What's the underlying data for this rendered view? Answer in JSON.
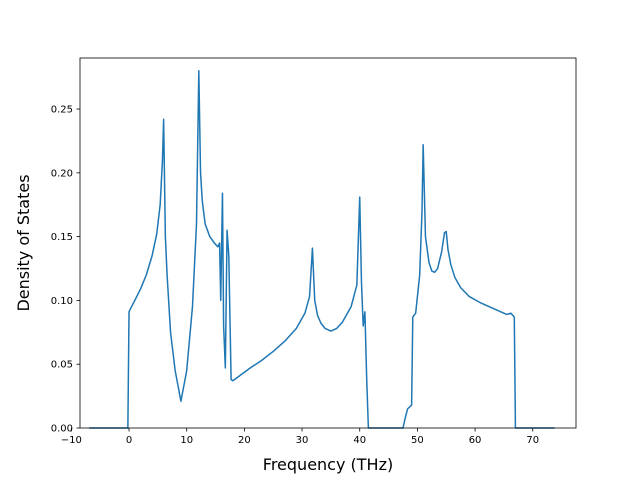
{
  "chart_data": {
    "type": "line",
    "xlabel": "Frequency (THz)",
    "ylabel": "Density of States",
    "xlim": [
      -8.5,
      77.5
    ],
    "ylim": [
      0.0,
      0.29
    ],
    "x_ticks": [
      -10,
      0,
      10,
      20,
      30,
      40,
      50,
      60,
      70
    ],
    "x_tick_labels": [
      "−10",
      "0",
      "10",
      "20",
      "30",
      "40",
      "50",
      "60",
      "70"
    ],
    "y_ticks": [
      0.0,
      0.05,
      0.1,
      0.15,
      0.2,
      0.25
    ],
    "y_tick_labels": [
      "0.00",
      "0.05",
      "0.10",
      "0.15",
      "0.20",
      "0.25"
    ],
    "grid": false,
    "legend": "none",
    "line_color": "#1f77b4",
    "series": [
      {
        "x": [
          -6.9,
          -0.2,
          0.0,
          0.2,
          1,
          2,
          3,
          4,
          4.8,
          5.4,
          5.8,
          6.0,
          6.3,
          6.6,
          7.2,
          8.0,
          9.0,
          10.0,
          11.0,
          11.7,
          12.1,
          12.4,
          12.7,
          13.2,
          14.0,
          14.8,
          15.4,
          15.7,
          15.9,
          16.2,
          16.4,
          16.7,
          17.0,
          17.3,
          17.7,
          18.0,
          18.6,
          19.5,
          21,
          23,
          25,
          27,
          29,
          30.5,
          31.3,
          31.8,
          32.2,
          32.7,
          33.3,
          34,
          35,
          36,
          37,
          38.5,
          39.5,
          40.0,
          40.3,
          40.6,
          40.9,
          41.2,
          41.5,
          41.8,
          42.1,
          47.5,
          47.9,
          48.3,
          49.0,
          49.2,
          49.7,
          50.4,
          50.8,
          51.0,
          51.4,
          52,
          52.5,
          53,
          53.5,
          54.2,
          54.7,
          55.0,
          55.3,
          55.8,
          56.5,
          57.5,
          59,
          61,
          63,
          64.5,
          65.5,
          66.2,
          66.8,
          67.0,
          73.8
        ],
        "y": [
          0.0,
          0.0,
          0.091,
          0.093,
          0.1,
          0.109,
          0.12,
          0.135,
          0.152,
          0.175,
          0.21,
          0.242,
          0.15,
          0.12,
          0.075,
          0.045,
          0.021,
          0.045,
          0.095,
          0.16,
          0.28,
          0.2,
          0.178,
          0.16,
          0.15,
          0.145,
          0.142,
          0.145,
          0.1,
          0.184,
          0.08,
          0.047,
          0.155,
          0.135,
          0.038,
          0.037,
          0.039,
          0.042,
          0.047,
          0.053,
          0.06,
          0.068,
          0.078,
          0.09,
          0.103,
          0.141,
          0.1,
          0.088,
          0.082,
          0.078,
          0.076,
          0.078,
          0.083,
          0.095,
          0.112,
          0.181,
          0.115,
          0.08,
          0.091,
          0.04,
          0.0,
          0.0,
          0.0,
          0.0,
          0.008,
          0.015,
          0.018,
          0.087,
          0.09,
          0.12,
          0.17,
          0.222,
          0.15,
          0.13,
          0.123,
          0.122,
          0.125,
          0.138,
          0.153,
          0.154,
          0.14,
          0.128,
          0.118,
          0.11,
          0.103,
          0.098,
          0.094,
          0.091,
          0.089,
          0.09,
          0.087,
          0.0,
          0.0
        ]
      }
    ]
  }
}
